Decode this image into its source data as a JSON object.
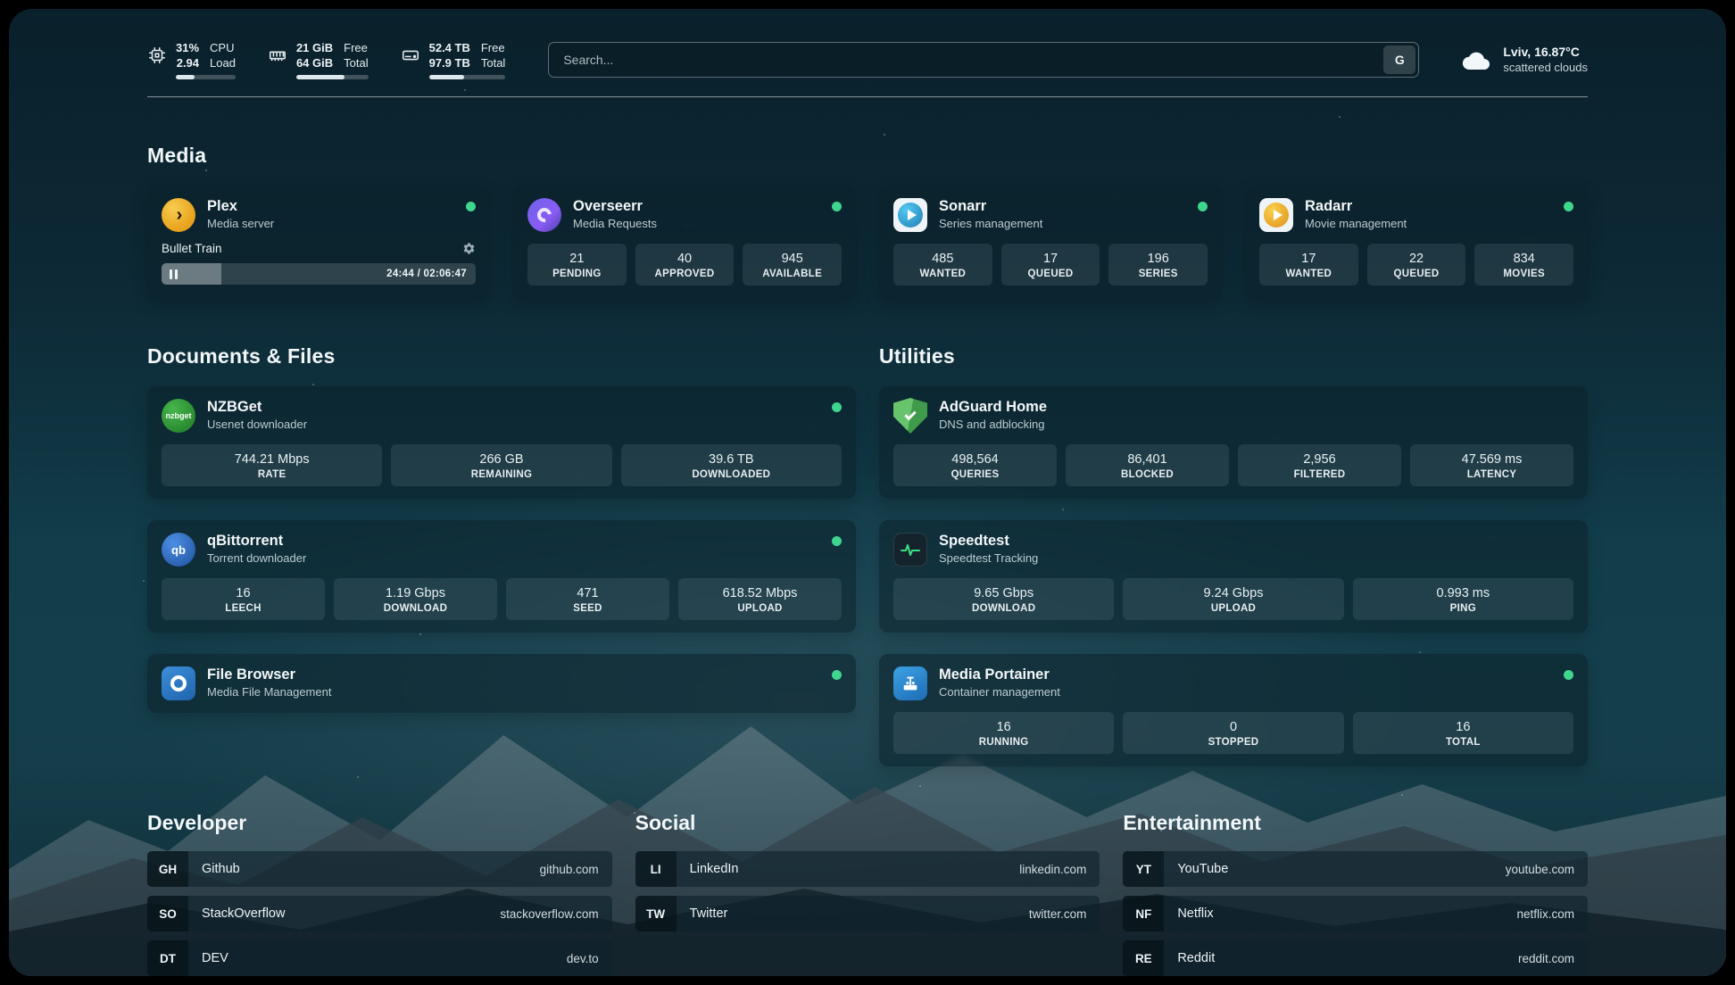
{
  "topbar": {
    "cpu": {
      "value1": "31%",
      "value2": "2.94",
      "label1": "CPU",
      "label2": "Load",
      "progress": 31
    },
    "memory": {
      "value1": "21 GiB",
      "value2": "64 GiB",
      "label1": "Free",
      "label2": "Total",
      "progress": 67
    },
    "disk": {
      "value1": "52.4 TB",
      "value2": "97.9 TB",
      "label1": "Free",
      "label2": "Total",
      "progress": 46
    },
    "search": {
      "placeholder": "Search...",
      "button_label": "G"
    },
    "weather": {
      "location": "Lviv, 16.87°C",
      "condition": "scattered clouds"
    }
  },
  "sections": {
    "media": "Media",
    "documents": "Documents & Files",
    "utilities": "Utilities",
    "developer": "Developer",
    "social": "Social",
    "entertainment": "Entertainment"
  },
  "services": {
    "plex": {
      "name": "Plex",
      "subtitle": "Media server",
      "now_playing": "Bullet Train",
      "time": "24:44 / 02:06:47",
      "progress_percent": 19
    },
    "overseerr": {
      "name": "Overseerr",
      "subtitle": "Media Requests",
      "stats": [
        {
          "value": "21",
          "label": "PENDING"
        },
        {
          "value": "40",
          "label": "APPROVED"
        },
        {
          "value": "945",
          "label": "AVAILABLE"
        }
      ]
    },
    "sonarr": {
      "name": "Sonarr",
      "subtitle": "Series management",
      "stats": [
        {
          "value": "485",
          "label": "WANTED"
        },
        {
          "value": "17",
          "label": "QUEUED"
        },
        {
          "value": "196",
          "label": "SERIES"
        }
      ]
    },
    "radarr": {
      "name": "Radarr",
      "subtitle": "Movie management",
      "stats": [
        {
          "value": "17",
          "label": "WANTED"
        },
        {
          "value": "22",
          "label": "QUEUED"
        },
        {
          "value": "834",
          "label": "MOVIES"
        }
      ]
    },
    "nzbget": {
      "name": "NZBGet",
      "subtitle": "Usenet downloader",
      "icon_text": "nzbget",
      "stats": [
        {
          "value": "744.21 Mbps",
          "label": "RATE"
        },
        {
          "value": "266 GB",
          "label": "REMAINING"
        },
        {
          "value": "39.6 TB",
          "label": "DOWNLOADED"
        }
      ]
    },
    "qbittorrent": {
      "name": "qBittorrent",
      "subtitle": "Torrent downloader",
      "icon_text": "qb",
      "stats": [
        {
          "value": "16",
          "label": "LEECH"
        },
        {
          "value": "1.19 Gbps",
          "label": "DOWNLOAD"
        },
        {
          "value": "471",
          "label": "SEED"
        },
        {
          "value": "618.52 Mbps",
          "label": "UPLOAD"
        }
      ]
    },
    "filebrowser": {
      "name": "File Browser",
      "subtitle": "Media File Management"
    },
    "adguard": {
      "name": "AdGuard Home",
      "subtitle": "DNS and adblocking",
      "stats": [
        {
          "value": "498,564",
          "label": "QUERIES"
        },
        {
          "value": "86,401",
          "label": "BLOCKED"
        },
        {
          "value": "2,956",
          "label": "FILTERED"
        },
        {
          "value": "47.569 ms",
          "label": "LATENCY"
        }
      ]
    },
    "speedtest": {
      "name": "Speedtest",
      "subtitle": "Speedtest Tracking",
      "stats": [
        {
          "value": "9.65 Gbps",
          "label": "DOWNLOAD"
        },
        {
          "value": "9.24 Gbps",
          "label": "UPLOAD"
        },
        {
          "value": "0.993 ms",
          "label": "PING"
        }
      ]
    },
    "portainer": {
      "name": "Media Portainer",
      "subtitle": "Container management",
      "stats": [
        {
          "value": "16",
          "label": "RUNNING"
        },
        {
          "value": "0",
          "label": "STOPPED"
        },
        {
          "value": "16",
          "label": "TOTAL"
        }
      ]
    }
  },
  "bookmarks": {
    "developer": [
      {
        "abbr": "GH",
        "name": "Github",
        "url": "github.com"
      },
      {
        "abbr": "SO",
        "name": "StackOverflow",
        "url": "stackoverflow.com"
      },
      {
        "abbr": "DT",
        "name": "DEV",
        "url": "dev.to"
      }
    ],
    "social": [
      {
        "abbr": "LI",
        "name": "LinkedIn",
        "url": "linkedin.com"
      },
      {
        "abbr": "TW",
        "name": "Twitter",
        "url": "twitter.com"
      }
    ],
    "entertainment": [
      {
        "abbr": "YT",
        "name": "YouTube",
        "url": "youtube.com"
      },
      {
        "abbr": "NF",
        "name": "Netflix",
        "url": "netflix.com"
      },
      {
        "abbr": "RE",
        "name": "Reddit",
        "url": "reddit.com"
      }
    ]
  },
  "colors": {
    "status_online": "#3fd68f",
    "plex_orange": "#e8a11b",
    "adguard_green": "#57b85f",
    "background_teal": "#123947"
  }
}
